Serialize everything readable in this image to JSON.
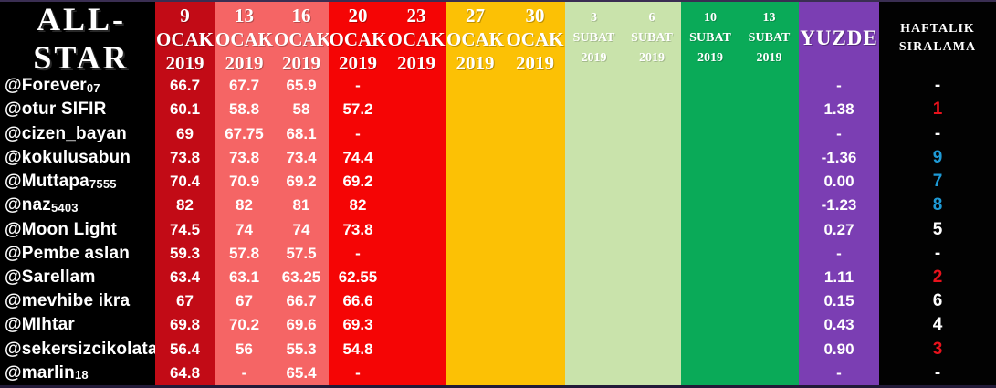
{
  "chart_data": {
    "type": "table",
    "title": "ALL-STAR",
    "yuzde_header": "YUZDE",
    "rank_header_lines": [
      "HAFTALIK",
      "SIRALAMA"
    ],
    "date_columns": [
      {
        "day": "9",
        "month": "OCAK",
        "year": "2019",
        "bg": "#c20b16",
        "size": "big",
        "width": 65
      },
      {
        "day": "13",
        "month": "OCAK",
        "year": "2019",
        "bg": "#f56565",
        "size": "big",
        "width": 65
      },
      {
        "day": "16",
        "month": "OCAK",
        "year": "2019",
        "bg": "#f56565",
        "size": "big",
        "width": 60
      },
      {
        "day": "20",
        "month": "OCAK",
        "year": "2019",
        "bg": "#f50505",
        "size": "big",
        "width": 64
      },
      {
        "day": "23",
        "month": "OCAK",
        "year": "2019",
        "bg": "#f50505",
        "size": "big",
        "width": 64
      },
      {
        "day": "27",
        "month": "OCAK",
        "year": "2019",
        "bg": "#fcc105",
        "size": "big",
        "width": 65
      },
      {
        "day": "30",
        "month": "OCAK",
        "year": "2019",
        "bg": "#fcc105",
        "size": "big",
        "width": 66
      },
      {
        "day": "3",
        "month": "SUBAT",
        "year": "2019",
        "bg": "#c9e3ab",
        "size": "small",
        "width": 63
      },
      {
        "day": "6",
        "month": "SUBAT",
        "year": "2019",
        "bg": "#c9e3ab",
        "size": "small",
        "width": 64
      },
      {
        "day": "10",
        "month": "SUBAT",
        "year": "2019",
        "bg": "#0aaa58",
        "size": "small",
        "width": 64
      },
      {
        "day": "13",
        "month": "SUBAT",
        "year": "2019",
        "bg": "#0aaa58",
        "size": "small",
        "width": 65
      }
    ],
    "rows": [
      {
        "user": "@Forever",
        "suffix": "07",
        "values": [
          "66.7",
          "67.7",
          "65.9",
          "-",
          "",
          "",
          "",
          "",
          "",
          "",
          ""
        ],
        "yuzde": "-",
        "rank": "-",
        "rank_color": "#ffffff"
      },
      {
        "user": "@otur SIFIR",
        "suffix": "",
        "values": [
          "60.1",
          "58.8",
          "58",
          "57.2",
          "",
          "",
          "",
          "",
          "",
          "",
          ""
        ],
        "yuzde": "1.38",
        "rank": "1",
        "rank_color": "#e8121c"
      },
      {
        "user": "@cizen_bayan",
        "suffix": "",
        "values": [
          "69",
          "67.75",
          "68.1",
          "-",
          "",
          "",
          "",
          "",
          "",
          "",
          ""
        ],
        "yuzde": "-",
        "rank": "-",
        "rank_color": "#ffffff"
      },
      {
        "user": "@kokulusabun",
        "suffix": "",
        "values": [
          "73.8",
          "73.8",
          "73.4",
          "74.4",
          "",
          "",
          "",
          "",
          "",
          "",
          ""
        ],
        "yuzde": "-1.36",
        "rank": "9",
        "rank_color": "#1e9ad6"
      },
      {
        "user": "@Muttapa",
        "suffix": "7555",
        "values": [
          "70.4",
          "70.9",
          "69.2",
          "69.2",
          "",
          "",
          "",
          "",
          "",
          "",
          ""
        ],
        "yuzde": "0.00",
        "rank": "7",
        "rank_color": "#1e9ad6"
      },
      {
        "user": "@naz",
        "suffix": "5403",
        "values": [
          "82",
          "82",
          "81",
          "82",
          "",
          "",
          "",
          "",
          "",
          "",
          ""
        ],
        "yuzde": "-1.23",
        "rank": "8",
        "rank_color": "#1e9ad6"
      },
      {
        "user": "@Moon Light",
        "suffix": "",
        "values": [
          "74.5",
          "74",
          "74",
          "73.8",
          "",
          "",
          "",
          "",
          "",
          "",
          ""
        ],
        "yuzde": "0.27",
        "rank": "5",
        "rank_color": "#ffffff"
      },
      {
        "user": "@Pembe aslan",
        "suffix": "",
        "values": [
          "59.3",
          "57.8",
          "57.5",
          "-",
          "",
          "",
          "",
          "",
          "",
          "",
          ""
        ],
        "yuzde": "-",
        "rank": "-",
        "rank_color": "#ffffff"
      },
      {
        "user": "@Sarellam",
        "suffix": "",
        "values": [
          "63.4",
          "63.1",
          "63.25",
          "62.55",
          "",
          "",
          "",
          "",
          "",
          "",
          ""
        ],
        "yuzde": "1.11",
        "rank": "2",
        "rank_color": "#e8121c"
      },
      {
        "user": "@mevhibe ikra",
        "suffix": "",
        "values": [
          "67",
          "67",
          "66.7",
          "66.6",
          "",
          "",
          "",
          "",
          "",
          "",
          ""
        ],
        "yuzde": "0.15",
        "rank": "6",
        "rank_color": "#ffffff"
      },
      {
        "user": "@MIhtar",
        "suffix": "",
        "values": [
          "69.8",
          "70.2",
          "69.6",
          "69.3",
          "",
          "",
          "",
          "",
          "",
          "",
          ""
        ],
        "yuzde": "0.43",
        "rank": "4",
        "rank_color": "#ffffff"
      },
      {
        "user": "@sekersizcikolata",
        "suffix": "",
        "values": [
          "56.4",
          "56",
          "55.3",
          "54.8",
          "",
          "",
          "",
          "",
          "",
          "",
          ""
        ],
        "yuzde": "0.90",
        "rank": "3",
        "rank_color": "#e8121c"
      },
      {
        "user": "@marlin",
        "suffix": "18",
        "values": [
          "64.8",
          "-",
          "65.4",
          "-",
          "",
          "",
          "",
          "",
          "",
          "",
          ""
        ],
        "yuzde": "-",
        "rank": "-",
        "rank_color": "#ffffff"
      }
    ]
  },
  "colors": {
    "names_bg": "#000000",
    "rank_bg": "#020202",
    "yuzde_bg": "#7b3eb3",
    "text": "#ffffff",
    "rank_red": "#e8121c",
    "rank_blue": "#1e9ad6",
    "border_top": "#3a2e52",
    "border_bottom": "#221a38"
  }
}
